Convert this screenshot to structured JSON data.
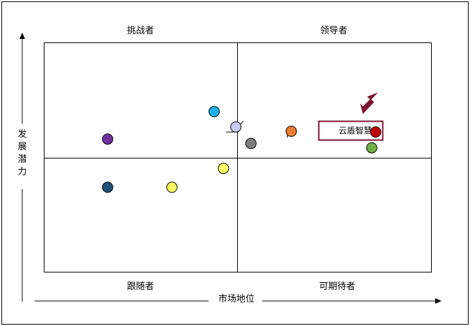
{
  "quadrants": {
    "top_left": "挑战者",
    "top_right": "领导者",
    "bottom_left": "跟随者",
    "bottom_right": "可期待者"
  },
  "axes": {
    "x_label": "市场地位",
    "y_label": [
      "发",
      "展",
      "潜",
      "力"
    ]
  },
  "highlight": {
    "label": "云盾智慧",
    "color": "#c00000",
    "border_color": "#7b1530",
    "arrow_color": "#7b1530"
  },
  "chart_data": {
    "type": "scatter",
    "xlim": [
      0,
      100
    ],
    "ylim": [
      0,
      100
    ],
    "points": [
      {
        "x": 85.6,
        "y": 61.1,
        "color": "#c00000"
      },
      {
        "x": 84.6,
        "y": 54.2,
        "color": "#70ad47"
      },
      {
        "x": 63.8,
        "y": 61.4,
        "color": "#ed7d31"
      },
      {
        "x": 49.5,
        "y": 63.3,
        "color": "#c9c9f2"
      },
      {
        "x": 53.4,
        "y": 56.1,
        "color": "#7f7f7f"
      },
      {
        "x": 43.9,
        "y": 70.0,
        "color": "#1ab0ed"
      },
      {
        "x": 46.3,
        "y": 45.2,
        "color": "#ffff66"
      },
      {
        "x": 16.4,
        "y": 58.0,
        "color": "#7030a0"
      },
      {
        "x": 16.4,
        "y": 37.0,
        "color": "#1f4e79"
      },
      {
        "x": 33.0,
        "y": 37.0,
        "color": "#ffff66"
      }
    ]
  }
}
